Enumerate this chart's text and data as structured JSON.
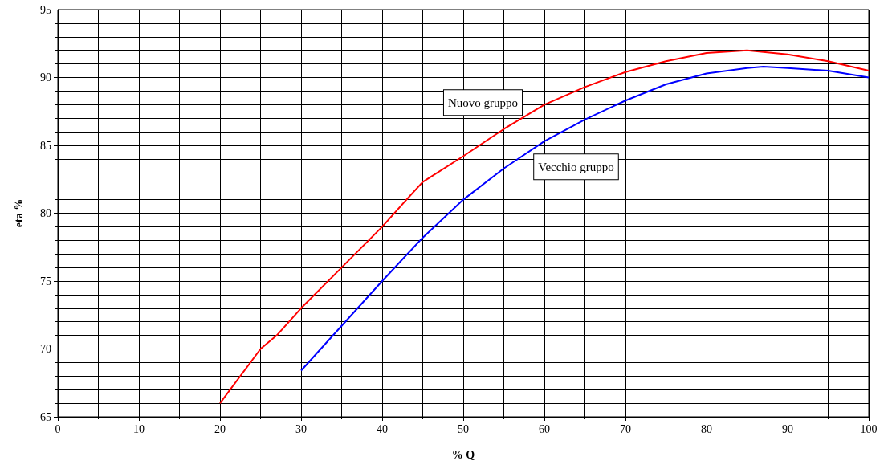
{
  "chart_data": {
    "type": "line",
    "xlabel": "% Q",
    "ylabel": "eta %",
    "xlim": [
      0,
      100
    ],
    "ylim": [
      65,
      95
    ],
    "xticks": [
      0,
      10,
      20,
      30,
      40,
      50,
      60,
      70,
      80,
      90,
      100
    ],
    "yticks": [
      65,
      70,
      75,
      80,
      85,
      90,
      95
    ],
    "grid": true,
    "legend": false,
    "marker": "none",
    "line_style": "solid",
    "series": [
      {
        "name": "Nuovo gruppo",
        "color": "#ff0000",
        "x": [
          20,
          25,
          27,
          30,
          35,
          40,
          43,
          45,
          50,
          55,
          60,
          65,
          70,
          75,
          80,
          85,
          90,
          95,
          100
        ],
        "values": [
          66,
          70,
          71,
          73,
          76,
          79,
          81,
          82.3,
          84.2,
          86.2,
          88,
          89.3,
          90.4,
          91.2,
          91.8,
          92,
          91.7,
          91.2,
          90.5
        ]
      },
      {
        "name": "Vecchio gruppo",
        "color": "#0000ff",
        "x": [
          30,
          35,
          40,
          45,
          50,
          55,
          60,
          65,
          70,
          75,
          80,
          85,
          87,
          90,
          95,
          100
        ],
        "values": [
          68.4,
          71.7,
          75,
          78.2,
          81,
          83.3,
          85.3,
          86.9,
          88.3,
          89.5,
          90.3,
          90.7,
          90.8,
          90.7,
          90.5,
          90
        ]
      }
    ]
  }
}
